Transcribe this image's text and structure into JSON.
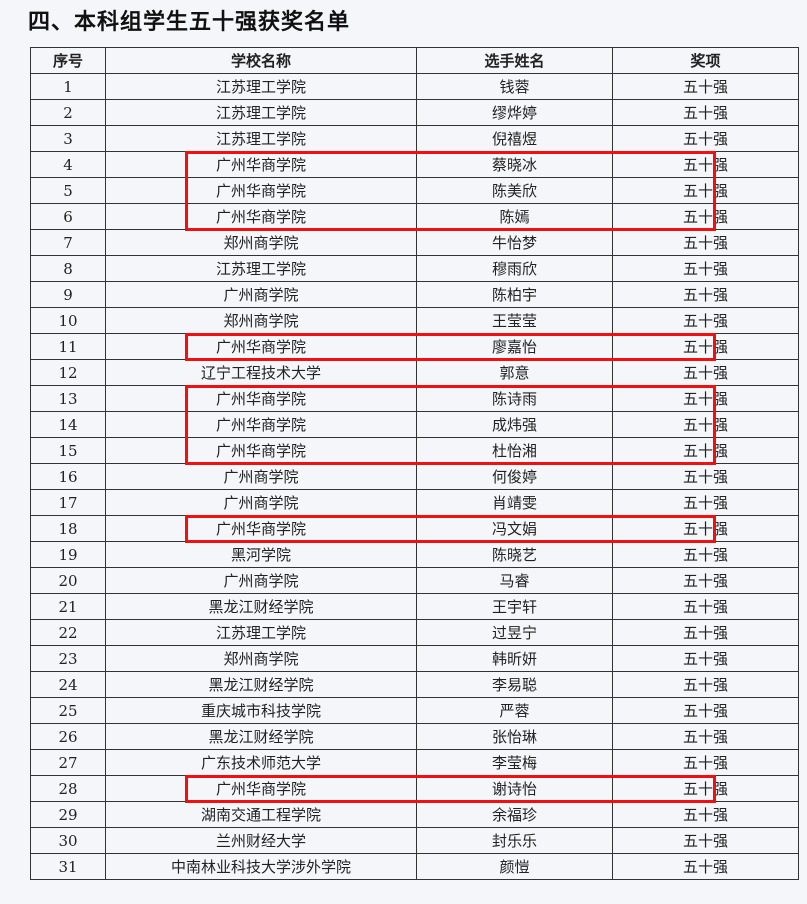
{
  "title": "四、本科组学生五十强获奖名单",
  "table": {
    "headers": [
      "序号",
      "学校名称",
      "选手姓名",
      "奖项"
    ],
    "rows": [
      [
        "1",
        "江苏理工学院",
        "钱蓉",
        "五十强"
      ],
      [
        "2",
        "江苏理工学院",
        "缪烨婷",
        "五十强"
      ],
      [
        "3",
        "江苏理工学院",
        "倪禧煜",
        "五十强"
      ],
      [
        "4",
        "广州华商学院",
        "蔡晓冰",
        "五十强"
      ],
      [
        "5",
        "广州华商学院",
        "陈美欣",
        "五十强"
      ],
      [
        "6",
        "广州华商学院",
        "陈嫣",
        "五十强"
      ],
      [
        "7",
        "郑州商学院",
        "牛怡梦",
        "五十强"
      ],
      [
        "8",
        "江苏理工学院",
        "穆雨欣",
        "五十强"
      ],
      [
        "9",
        "广州商学院",
        "陈柏宇",
        "五十强"
      ],
      [
        "10",
        "郑州商学院",
        "王莹莹",
        "五十强"
      ],
      [
        "11",
        "广州华商学院",
        "廖嘉怡",
        "五十强"
      ],
      [
        "12",
        "辽宁工程技术大学",
        "郭意",
        "五十强"
      ],
      [
        "13",
        "广州华商学院",
        "陈诗雨",
        "五十强"
      ],
      [
        "14",
        "广州华商学院",
        "成炜强",
        "五十强"
      ],
      [
        "15",
        "广州华商学院",
        "杜怡湘",
        "五十强"
      ],
      [
        "16",
        "广州商学院",
        "何俊婷",
        "五十强"
      ],
      [
        "17",
        "广州商学院",
        "肖靖雯",
        "五十强"
      ],
      [
        "18",
        "广州华商学院",
        "冯文娟",
        "五十强"
      ],
      [
        "19",
        "黑河学院",
        "陈晓艺",
        "五十强"
      ],
      [
        "20",
        "广州商学院",
        "马睿",
        "五十强"
      ],
      [
        "21",
        "黑龙江财经学院",
        "王宇轩",
        "五十强"
      ],
      [
        "22",
        "江苏理工学院",
        "过昱宁",
        "五十强"
      ],
      [
        "23",
        "郑州商学院",
        "韩昕妍",
        "五十强"
      ],
      [
        "24",
        "黑龙江财经学院",
        "李易聪",
        "五十强"
      ],
      [
        "25",
        "重庆城市科技学院",
        "严蓉",
        "五十强"
      ],
      [
        "26",
        "黑龙江财经学院",
        "张怡琳",
        "五十强"
      ],
      [
        "27",
        "广东技术师范大学",
        "李莹梅",
        "五十强"
      ],
      [
        "28",
        "广州华商学院",
        "谢诗怡",
        "五十强"
      ],
      [
        "29",
        "湖南交通工程学院",
        "余福珍",
        "五十强"
      ],
      [
        "30",
        "兰州财经大学",
        "封乐乐",
        "五十强"
      ],
      [
        "31",
        "中南林业科技大学涉外学院",
        "颜愷",
        "五十强"
      ]
    ]
  },
  "highlighted_rows": [
    [
      4,
      6
    ],
    [
      11,
      11
    ],
    [
      13,
      15
    ],
    [
      18,
      18
    ],
    [
      28,
      28
    ]
  ],
  "highlight_color": "#f01010"
}
